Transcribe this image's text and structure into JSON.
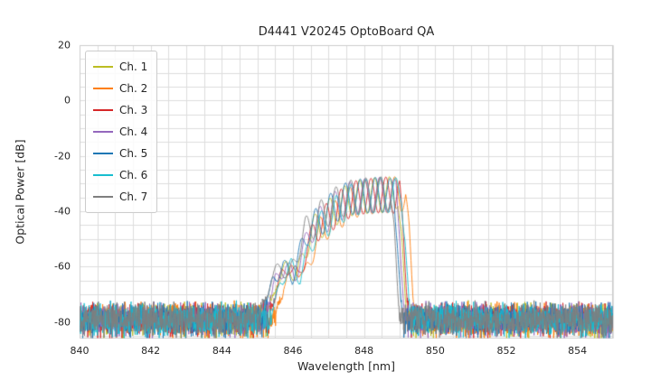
{
  "figure": {
    "background": "#ffffff"
  },
  "chart_data": {
    "type": "line",
    "title": "D4441 V20245 OptoBoard QA",
    "xlabel": "Wavelength [nm]",
    "ylabel": "Optical Power [dB]",
    "xlim": [
      840,
      855
    ],
    "ylim": [
      -86,
      20
    ],
    "xticks": [
      840,
      842,
      844,
      846,
      848,
      850,
      852,
      854
    ],
    "yticks": [
      20,
      0,
      -20,
      -40,
      -60,
      -80
    ],
    "grid": {
      "x_step": 0.5,
      "y_step": 5,
      "color": "#dddddd",
      "border_color": "#cccccc"
    },
    "x_step": 0.01,
    "noise_floor": {
      "mean": -79,
      "spread": 7
    },
    "signal": {
      "ripple_period": 0.42,
      "envelope_nodes": [
        [
          845.3,
          -78
        ],
        [
          845.55,
          -63
        ],
        [
          845.85,
          -57
        ],
        [
          846.1,
          -61
        ],
        [
          846.3,
          -52
        ],
        [
          846.55,
          -42
        ],
        [
          846.9,
          -37
        ],
        [
          847.3,
          -32
        ],
        [
          847.7,
          -29
        ],
        [
          848.2,
          -28
        ],
        [
          848.7,
          -27.5
        ],
        [
          848.95,
          -28.5
        ],
        [
          849.05,
          -45
        ],
        [
          849.15,
          -70
        ],
        [
          849.25,
          -95
        ]
      ],
      "ripple_amp_nodes": [
        [
          845.2,
          0
        ],
        [
          845.5,
          5
        ],
        [
          846.1,
          6
        ],
        [
          846.45,
          9
        ],
        [
          846.9,
          12
        ],
        [
          848.8,
          13
        ],
        [
          849.0,
          9
        ],
        [
          849.12,
          3
        ],
        [
          849.2,
          0
        ]
      ]
    },
    "legend": {
      "position": "upper-left"
    },
    "series": [
      {
        "name": "Ch. 1",
        "color": "#bcbd22",
        "shift": 0.0,
        "phase": 0.0,
        "seed": 11
      },
      {
        "name": "Ch. 2",
        "color": "#ff7f0e",
        "shift": 0.22,
        "phase": 1.1,
        "seed": 22
      },
      {
        "name": "Ch. 3",
        "color": "#d62728",
        "shift": 0.05,
        "phase": 2.3,
        "seed": 33
      },
      {
        "name": "Ch. 4",
        "color": "#9467bd",
        "shift": -0.05,
        "phase": 3.4,
        "seed": 44
      },
      {
        "name": "Ch. 5",
        "color": "#1f77b4",
        "shift": -0.12,
        "phase": 4.2,
        "seed": 55
      },
      {
        "name": "Ch. 6",
        "color": "#17becf",
        "shift": 0.1,
        "phase": 5.1,
        "seed": 66
      },
      {
        "name": "Ch. 7",
        "color": "#7f7f7f",
        "shift": -0.2,
        "phase": 0.7,
        "seed": 77
      }
    ]
  }
}
